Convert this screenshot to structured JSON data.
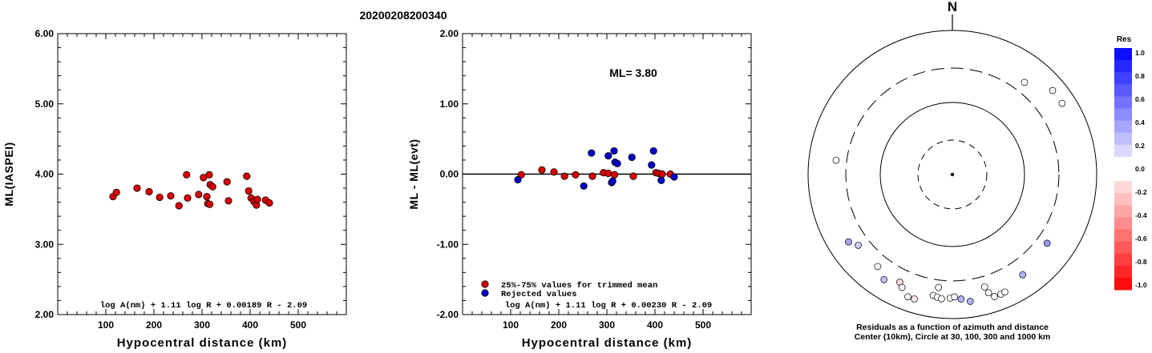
{
  "figure": {
    "event_id": "20200208200340",
    "north_label": "N",
    "ml_label": "ML= 3.80",
    "legend_items": [
      "25%-75% values for trimmed mean",
      "Rejected values"
    ],
    "polar_caption_line1": "Residuals as a function of azimuth and distance",
    "polar_caption_line2": "Center (10km), Circle at 30, 100, 300 and 1000 km",
    "colorbar_title": "Res"
  },
  "colors": {
    "used": "#dd0000",
    "rejected": "#0000cc",
    "axis": "#000000"
  },
  "chart_data": [
    {
      "type": "scatter",
      "name": "left",
      "title": "",
      "xlabel": "Hypocentral distance (km)",
      "ylabel": "ML(IASPEI)",
      "xlim": [
        0,
        600
      ],
      "ylim": [
        2,
        6
      ],
      "xticks": [
        "100",
        "200",
        "300",
        "400",
        "500"
      ],
      "yticks": [
        "2.00",
        "3.00",
        "4.00",
        "5.00",
        "6.00"
      ],
      "formula": "log A(nm) + 1.11 log R + 0.00189 R - 2.09",
      "points": [
        [
          115,
          3.68
        ],
        [
          122,
          3.74
        ],
        [
          165,
          3.8
        ],
        [
          190,
          3.75
        ],
        [
          212,
          3.67
        ],
        [
          235,
          3.69
        ],
        [
          252,
          3.55
        ],
        [
          270,
          3.66
        ],
        [
          268,
          3.99
        ],
        [
          293,
          3.71
        ],
        [
          303,
          3.95
        ],
        [
          310,
          3.68
        ],
        [
          312,
          3.58
        ],
        [
          315,
          3.99
        ],
        [
          317,
          3.85
        ],
        [
          322,
          3.82
        ],
        [
          316,
          3.57
        ],
        [
          352,
          3.89
        ],
        [
          355,
          3.62
        ],
        [
          393,
          3.97
        ],
        [
          397,
          3.76
        ],
        [
          402,
          3.66
        ],
        [
          408,
          3.61
        ],
        [
          413,
          3.56
        ],
        [
          415,
          3.64
        ],
        [
          432,
          3.63
        ],
        [
          440,
          3.59
        ]
      ]
    },
    {
      "type": "scatter",
      "name": "middle",
      "title": "",
      "xlabel": "Hypocentral distance (km)",
      "ylabel": "ML - ML(evt)",
      "xlim": [
        0,
        600
      ],
      "ylim": [
        -2,
        2
      ],
      "xticks": [
        "100",
        "200",
        "300",
        "400",
        "500"
      ],
      "yticks": [
        "-2.00",
        "-1.00",
        "0.00",
        "1.00",
        "2.00"
      ],
      "formula": "log A(nm) + 1.11 log R + 0.00230 R - 2.09",
      "series": [
        {
          "name": "25%-75% values for trimmed mean",
          "points": [
            [
              122,
              -0.01
            ],
            [
              165,
              0.06
            ],
            [
              190,
              0.03
            ],
            [
              212,
              -0.03
            ],
            [
              235,
              -0.01
            ],
            [
              270,
              -0.03
            ],
            [
              293,
              0.02
            ],
            [
              303,
              0.01
            ],
            [
              316,
              -0.01
            ],
            [
              355,
              -0.03
            ],
            [
              402,
              0.02
            ],
            [
              408,
              0.01
            ],
            [
              415,
              0.0
            ],
            [
              432,
              0.0
            ]
          ]
        },
        {
          "name": "Rejected values",
          "points": [
            [
              115,
              -0.08
            ],
            [
              252,
              -0.17
            ],
            [
              268,
              0.3
            ],
            [
              303,
              0.26
            ],
            [
              310,
              -0.12
            ],
            [
              312,
              -0.1
            ],
            [
              315,
              0.33
            ],
            [
              317,
              0.17
            ],
            [
              322,
              0.15
            ],
            [
              352,
              0.24
            ],
            [
              393,
              0.13
            ],
            [
              397,
              0.33
            ],
            [
              413,
              -0.09
            ],
            [
              440,
              -0.04
            ]
          ]
        }
      ],
      "zero_line": 0
    },
    {
      "type": "polar-scatter",
      "name": "residual-map",
      "rings_km": [
        30,
        100,
        300,
        1000
      ],
      "points": [
        {
          "az": 38,
          "dist": 420,
          "res": 0.0
        },
        {
          "az": 50,
          "dist": 650,
          "res": 0.0
        },
        {
          "az": 57,
          "dist": 650,
          "res": -0.05
        },
        {
          "az": 277,
          "dist": 420,
          "res": 0.0
        },
        {
          "az": 126,
          "dist": 420,
          "res": 0.4
        },
        {
          "az": 237,
          "dist": 520,
          "res": 0.35
        },
        {
          "az": 233,
          "dist": 430,
          "res": 0.2
        },
        {
          "az": 219,
          "dist": 440,
          "res": 0.0
        },
        {
          "az": 213,
          "dist": 550,
          "res": 0.25
        },
        {
          "az": 206,
          "dist": 460,
          "res": -0.15
        },
        {
          "az": 204,
          "dist": 520,
          "res": 0.0
        },
        {
          "az": 200,
          "dist": 640,
          "res": 0.0
        },
        {
          "az": 197,
          "dist": 640,
          "res": -0.1
        },
        {
          "az": 187,
          "dist": 380,
          "res": 0.0
        },
        {
          "az": 189,
          "dist": 500,
          "res": 0.0
        },
        {
          "az": 187,
          "dist": 520,
          "res": 0.0
        },
        {
          "az": 185,
          "dist": 540,
          "res": 0.0
        },
        {
          "az": 181,
          "dist": 520,
          "res": 0.0
        },
        {
          "az": 179,
          "dist": 500,
          "res": 0.0
        },
        {
          "az": 176,
          "dist": 540,
          "res": 0.3
        },
        {
          "az": 172,
          "dist": 600,
          "res": 0.3
        },
        {
          "az": 164,
          "dist": 420,
          "res": 0.0
        },
        {
          "az": 163,
          "dist": 520,
          "res": 0.0
        },
        {
          "az": 161,
          "dist": 620,
          "res": 0.0
        },
        {
          "az": 158,
          "dist": 620,
          "res": 0.0
        },
        {
          "az": 156,
          "dist": 610,
          "res": 0.0
        },
        {
          "az": 145,
          "dist": 500,
          "res": 0.3
        }
      ]
    },
    {
      "type": "colorbar",
      "name": "residual-scale",
      "title": "Res",
      "range": [
        -1,
        1
      ],
      "tick_labels": [
        "1.0",
        "0.8",
        "0.6",
        "0.4",
        "0.2",
        "0.0",
        "-0.2",
        "-0.4",
        "-0.6",
        "-0.8",
        "-1.0"
      ]
    }
  ]
}
